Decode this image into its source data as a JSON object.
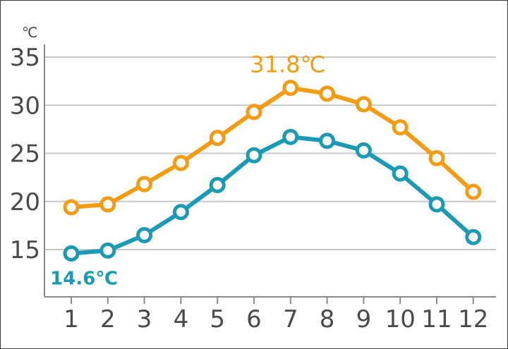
{
  "chart_data": {
    "type": "line",
    "ylabel": "℃",
    "ylim": [
      10,
      37
    ],
    "yticks": [
      15,
      20,
      25,
      30,
      35
    ],
    "categories": [
      "1",
      "2",
      "3",
      "4",
      "5",
      "6",
      "7",
      "8",
      "9",
      "10",
      "11",
      "12"
    ],
    "grid": true,
    "series": [
      {
        "color": "#f39c12",
        "values": [
          19.4,
          19.7,
          21.8,
          24.0,
          26.6,
          29.3,
          31.8,
          31.2,
          30.1,
          27.7,
          24.5,
          21.0
        ]
      },
      {
        "color": "#1a9ab5",
        "values": [
          14.6,
          14.9,
          16.5,
          18.9,
          21.7,
          24.8,
          26.7,
          26.3,
          25.3,
          22.9,
          19.7,
          16.3
        ]
      }
    ],
    "annotations": [
      {
        "text": "31.8℃",
        "series": 0,
        "index": 6,
        "color": "#f39c12"
      },
      {
        "text": "14.6℃",
        "series": 1,
        "index": 0,
        "color": "#1a9ab5"
      }
    ]
  }
}
